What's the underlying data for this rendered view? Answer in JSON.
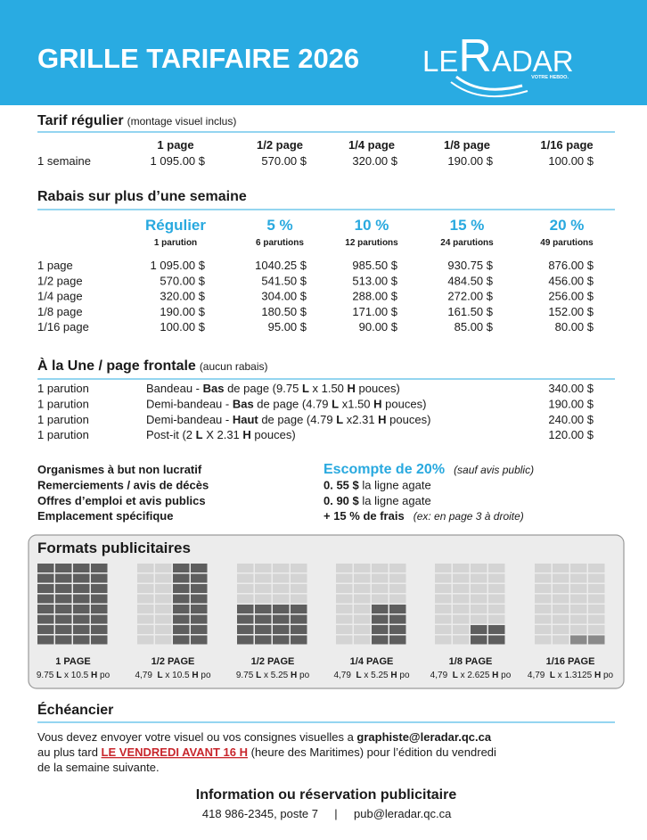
{
  "header": {
    "title": "GRILLE TARIFAIRE 2026",
    "logo": [
      "LE",
      "R",
      "ADAR"
    ],
    "tagline": "VOTRE HEBDO."
  },
  "regular": {
    "title": "Tarif régulier",
    "note": "(montage visuel inclus)",
    "columns": [
      "1 page",
      "1/2 page",
      "1/4 page",
      "1/8 page",
      "1/16 page"
    ],
    "rows": [
      {
        "label": "1 semaine",
        "values": [
          "1 095.00 $",
          "570.00 $",
          "320.00 $",
          "190.00 $",
          "100.00 $"
        ]
      }
    ]
  },
  "discounts": {
    "title": "Rabais sur plus d’une semaine",
    "columns": [
      {
        "label": "Régulier",
        "sub": "1 parution"
      },
      {
        "label": "5 %",
        "sub": "6 parutions"
      },
      {
        "label": "10 %",
        "sub": "12 parutions"
      },
      {
        "label": "15 %",
        "sub": "24 parutions"
      },
      {
        "label": "20 %",
        "sub": "49 parutions"
      }
    ],
    "rows": [
      {
        "label": "1 page",
        "values": [
          "1 095.00 $",
          "1040.25 $",
          "985.50 $",
          "930.75 $",
          "876.00 $"
        ]
      },
      {
        "label": "1/2 page",
        "values": [
          "570.00 $",
          "541.50 $",
          "513.00 $",
          "484.50 $",
          "456.00 $"
        ]
      },
      {
        "label": "1/4 page",
        "values": [
          "320.00 $",
          "304.00 $",
          "288.00 $",
          "272.00 $",
          "256.00 $"
        ]
      },
      {
        "label": "1/8 page",
        "values": [
          "190.00 $",
          "180.50 $",
          "171.00 $",
          "161.50 $",
          "152.00 $"
        ]
      },
      {
        "label": "1/16 page",
        "values": [
          "100.00 $",
          "95.00 $",
          "90.00 $",
          "85.00 $",
          "80.00 $"
        ]
      }
    ]
  },
  "front": {
    "title": "À la Une / page frontale",
    "note": "(aucun rabais)",
    "rows": [
      {
        "label": "1 parution",
        "description": [
          {
            "text": "Bandeau - "
          },
          {
            "text": "Bas",
            "style": "bold"
          },
          {
            "text": " de page (9.75 "
          },
          {
            "text": "L",
            "style": "bold"
          },
          {
            "text": " x 1.50 "
          },
          {
            "text": "H",
            "style": "bold"
          },
          {
            "text": " pouces)"
          }
        ],
        "price": "340.00 $"
      },
      {
        "label": "1 parution",
        "description": [
          {
            "text": "Demi-bandeau - "
          },
          {
            "text": "Bas",
            "style": "bold"
          },
          {
            "text": " de page (4.79 "
          },
          {
            "text": "L",
            "style": "bold"
          },
          {
            "text": " x1.50 "
          },
          {
            "text": "H",
            "style": "bold"
          },
          {
            "text": " pouces)"
          }
        ],
        "price": "190.00 $"
      },
      {
        "label": "1 parution",
        "description": [
          {
            "text": "Demi-bandeau - "
          },
          {
            "text": "Haut",
            "style": "bold"
          },
          {
            "text": " de page (4.79 "
          },
          {
            "text": "L",
            "style": "bold"
          },
          {
            "text": " x2.31 "
          },
          {
            "text": "H",
            "style": "bold"
          },
          {
            "text": " pouces)"
          }
        ],
        "price": "240.00 $"
      },
      {
        "label": "1 parution",
        "description": [
          {
            "text": "Post-it (2 "
          },
          {
            "text": "L",
            "style": "bold"
          },
          {
            "text": " X 2.31 "
          },
          {
            "text": "H",
            "style": "bold"
          },
          {
            "text": " pouces)"
          }
        ],
        "price": "120.00 $"
      }
    ]
  },
  "extras": [
    {
      "label": "Organismes à but non lucratif",
      "detail": [
        {
          "text": "Escompte de 20%",
          "style": "highlight"
        },
        {
          "text": "(sauf avis public)",
          "style": "italic"
        }
      ]
    },
    {
      "label": "Remerciements / avis de décès",
      "detail": [
        {
          "text": "0. 55 $",
          "style": "bold"
        },
        {
          "text": " la ligne agate"
        }
      ]
    },
    {
      "label": "Offres d’emploi et avis publics",
      "detail": [
        {
          "text": "0. 90 $",
          "style": "bold"
        },
        {
          "text": " la ligne agate"
        }
      ]
    },
    {
      "label": "Emplacement spécifique",
      "detail": [
        {
          "text": "+ 15 % de frais",
          "style": "bold"
        },
        {
          "text": "(ex: en page 3 à droite)",
          "style": "italic"
        }
      ]
    }
  ],
  "formats": {
    "title": "Formats publicitaires",
    "items": [
      {
        "name": "1 PAGE",
        "size": [
          {
            "text": "9.75 "
          },
          {
            "text": "L",
            "style": "bold"
          },
          {
            "text": " x 10.5 "
          },
          {
            "text": "H",
            "style": "bold"
          },
          {
            "text": " po"
          }
        ]
      },
      {
        "name": "1/2 PAGE",
        "size": [
          {
            "text": "4,79  "
          },
          {
            "text": "L",
            "style": "bold"
          },
          {
            "text": " x 10.5 "
          },
          {
            "text": "H",
            "style": "bold"
          },
          {
            "text": " po"
          }
        ]
      },
      {
        "name": "1/2 PAGE",
        "size": [
          {
            "text": "9.75 "
          },
          {
            "text": "L",
            "style": "bold"
          },
          {
            "text": " x 5.25 "
          },
          {
            "text": "H",
            "style": "bold"
          },
          {
            "text": " po"
          }
        ]
      },
      {
        "name": "1/4 PAGE",
        "size": [
          {
            "text": "4,79  "
          },
          {
            "text": "L",
            "style": "bold"
          },
          {
            "text": " x 5.25 "
          },
          {
            "text": "H",
            "style": "bold"
          },
          {
            "text": " po"
          }
        ]
      },
      {
        "name": "1/8 PAGE",
        "size": [
          {
            "text": "4,79  "
          },
          {
            "text": "L",
            "style": "bold"
          },
          {
            "text": " x 2.625 "
          },
          {
            "text": "H",
            "style": "bold"
          },
          {
            "text": " po"
          }
        ]
      },
      {
        "name": "1/16 PAGE",
        "size": [
          {
            "text": "4,79  "
          },
          {
            "text": "L",
            "style": "bold"
          },
          {
            "text": " x 1.3125 "
          },
          {
            "text": "H",
            "style": "bold"
          },
          {
            "text": " po"
          }
        ]
      }
    ]
  },
  "schedule": {
    "title": "Échéancier",
    "lines": [
      [
        {
          "text": "Vous devez envoyer votre visuel ou vos consignes visuelles a "
        },
        {
          "text": "graphiste@leradar.qc.ca",
          "style": "bold"
        }
      ],
      [
        {
          "text": "au plus tard "
        },
        {
          "text": "LE VENDREDI AVANT 16 H",
          "style": "alert"
        },
        {
          "text": " (heure des Maritimes) pour l’édition du vendredi"
        }
      ],
      [
        {
          "text": "de la semaine suivante."
        }
      ]
    ]
  },
  "contact": {
    "title": "Information ou réservation publicitaire",
    "phone": "418 986-2345, poste 7",
    "separator": "|",
    "email": "pub@leradar.qc.ca"
  }
}
